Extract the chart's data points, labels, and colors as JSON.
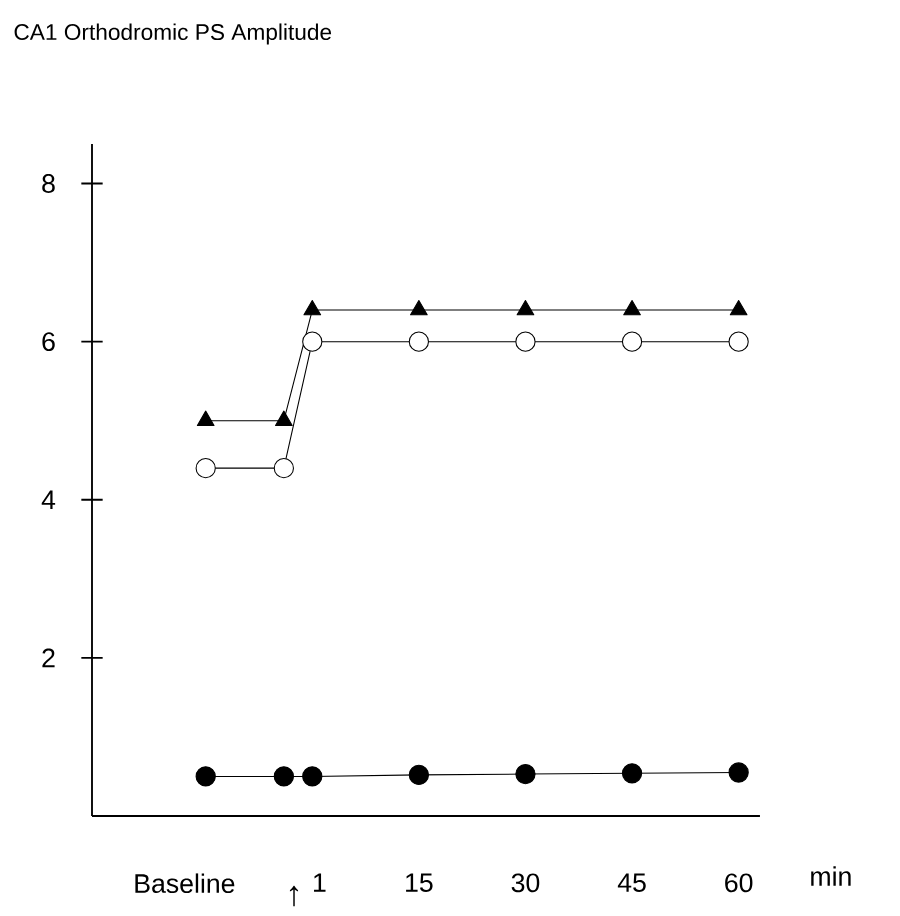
{
  "chart_data": {
    "type": "line",
    "title": "CA1 Orthodromic PS Amplitude",
    "xlabel": "min",
    "x": [
      -15,
      -4,
      0,
      15,
      30,
      45,
      60
    ],
    "series": [
      {
        "color": "#000000",
        "marker": "triangle",
        "values": [
          5.0,
          5.0,
          6.4,
          6.4,
          6.4,
          6.4,
          6.4
        ]
      },
      {
        "color": "#ffffff",
        "marker": "circle",
        "values": [
          4.4,
          4.4,
          6.0,
          6.0,
          6.0,
          6.0,
          6.0
        ]
      },
      {
        "color": "#000000",
        "marker": "circle",
        "values": [
          0.5,
          0.5,
          0.5,
          0.52,
          0.53,
          0.54,
          0.55
        ]
      }
    ],
    "xlim": [
      -31,
      63
    ],
    "ylim": [
      0,
      8.5
    ],
    "xticks": [
      {
        "value": -18,
        "label": "Baseline"
      },
      1,
      15,
      30,
      45,
      60
    ],
    "yticks": [
      2,
      4,
      6,
      8
    ],
    "annotations": [
      "↑"
    ],
    "line_style": "solid",
    "grid": false
  }
}
